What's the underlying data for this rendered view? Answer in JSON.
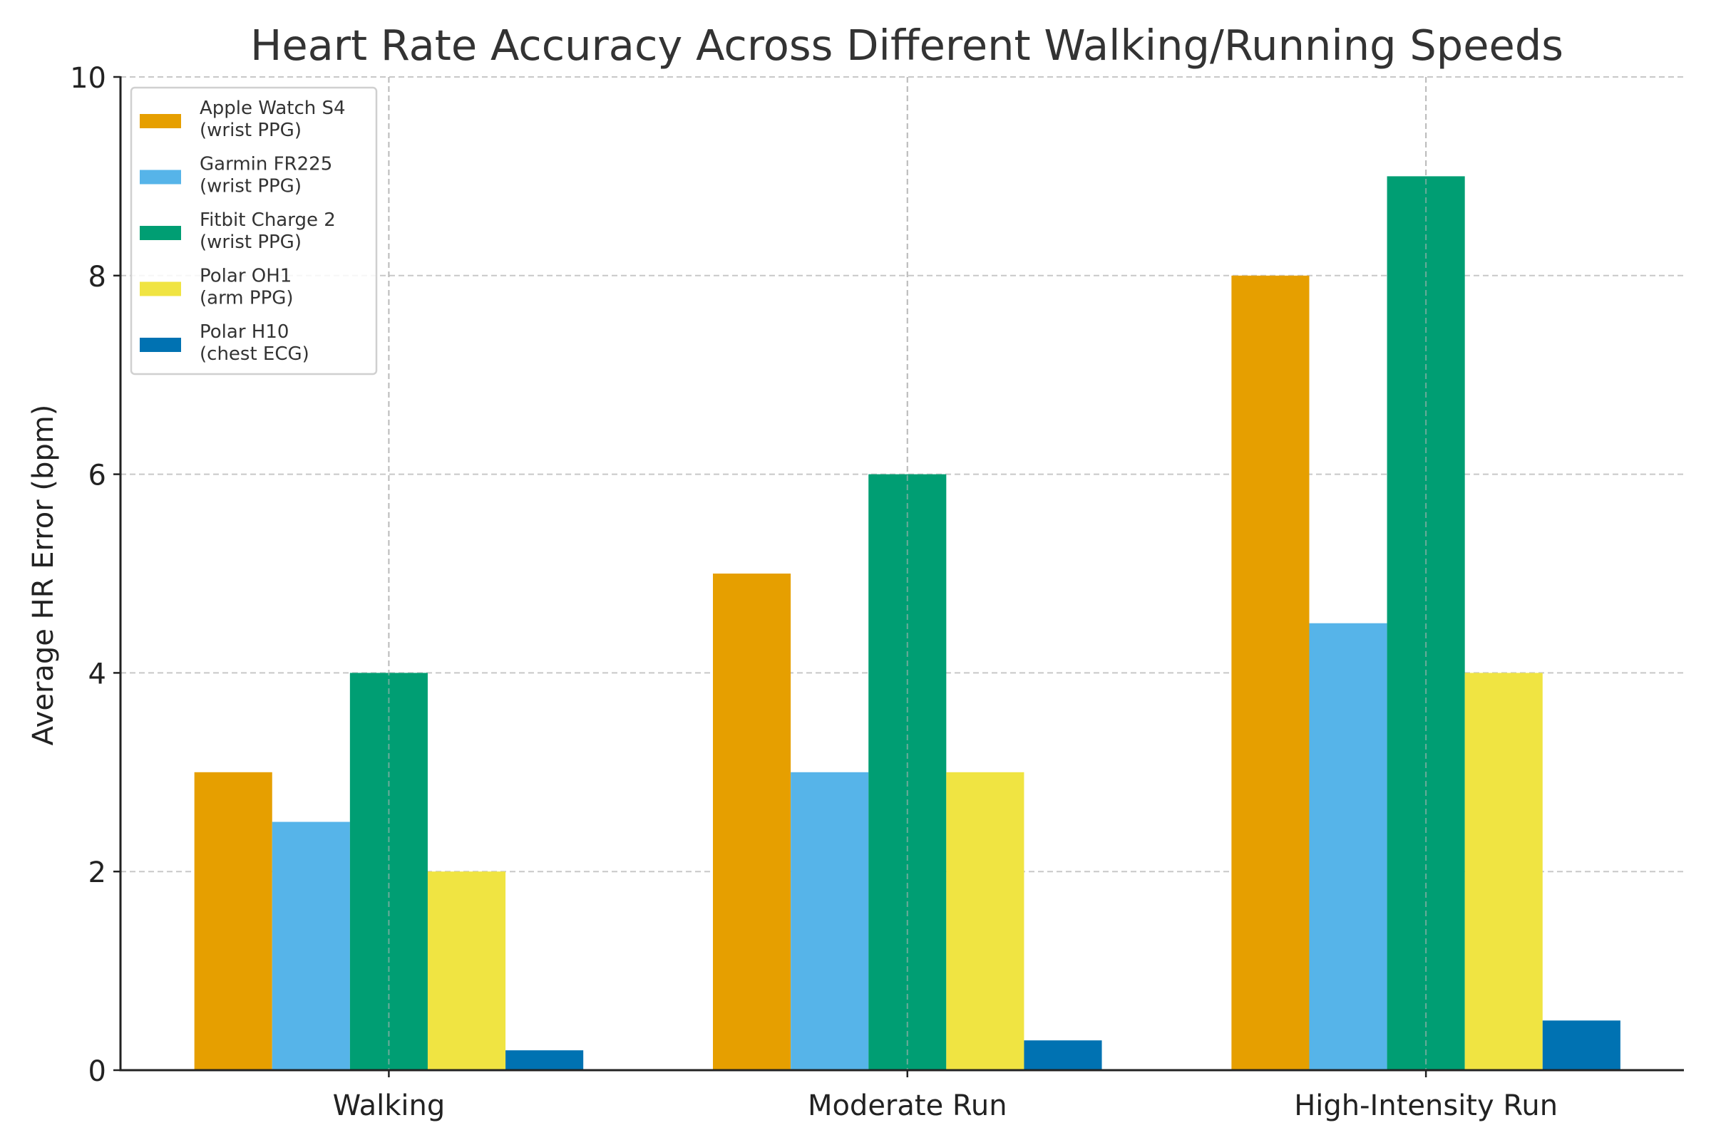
{
  "chart_data": {
    "type": "bar",
    "title": "Heart Rate Accuracy Across Different Walking/Running Speeds",
    "xlabel": "",
    "ylabel": "Average HR Error (bpm)",
    "categories": [
      "Walking",
      "Moderate Run",
      "High-Intensity Run"
    ],
    "series": [
      {
        "name": "Apple Watch S4\n(wrist PPG)",
        "label_lines": [
          "Apple Watch S4",
          "(wrist PPG)"
        ],
        "color": "#E69F00",
        "values": [
          3,
          5,
          8
        ]
      },
      {
        "name": "Garmin FR225\n(wrist PPG)",
        "label_lines": [
          "Garmin FR225",
          "(wrist PPG)"
        ],
        "color": "#56B4E9",
        "values": [
          2.5,
          3,
          4.5
        ]
      },
      {
        "name": "Fitbit Charge 2\n(wrist PPG)",
        "label_lines": [
          "Fitbit Charge 2",
          "(wrist PPG)"
        ],
        "color": "#009E73",
        "values": [
          4,
          6,
          9
        ]
      },
      {
        "name": "Polar OH1\n(arm PPG)",
        "label_lines": [
          "Polar OH1",
          "(arm PPG)"
        ],
        "color": "#F0E442",
        "values": [
          2,
          3,
          4
        ]
      },
      {
        "name": "Polar H10\n(chest ECG)",
        "label_lines": [
          "Polar H10",
          "(chest ECG)"
        ],
        "color": "#0072B2",
        "values": [
          0.2,
          0.3,
          0.5
        ]
      }
    ],
    "ylim": [
      0,
      10
    ],
    "yticks": [
      0,
      2,
      4,
      6,
      8,
      10
    ],
    "grid": true,
    "legend_position": "top-left"
  }
}
